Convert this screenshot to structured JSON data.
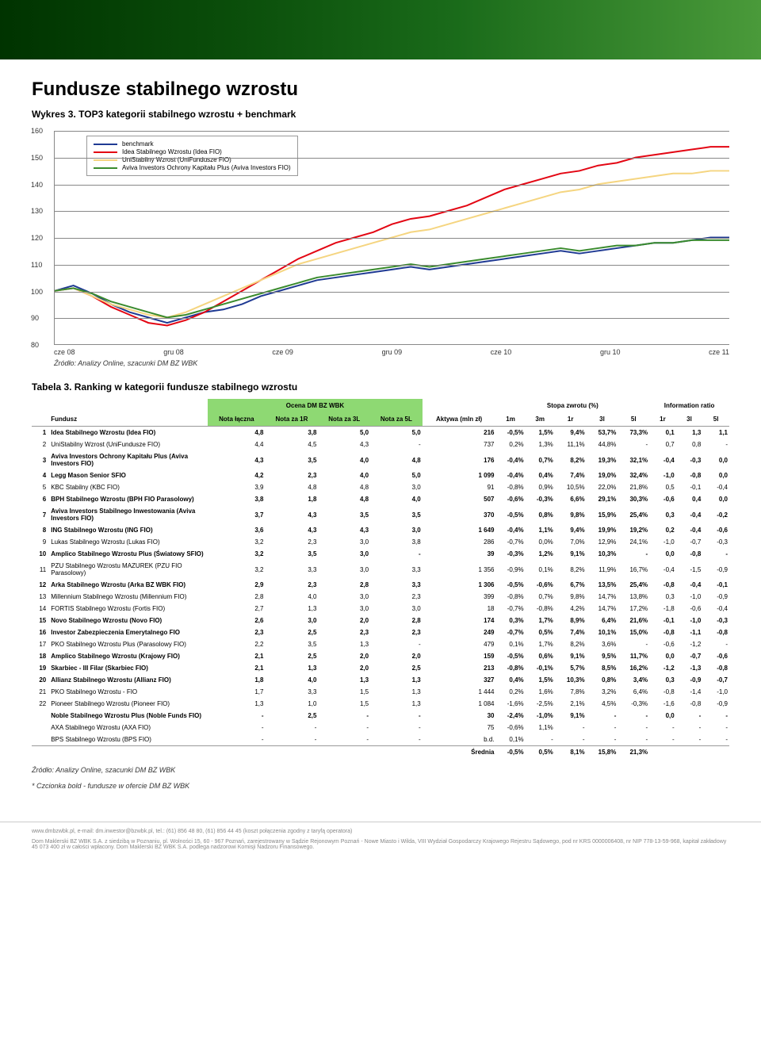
{
  "page": {
    "title": "Fundusze stabilnego wzrostu",
    "chart_caption": "Wykres 3. TOP3 kategorii stabilnego wzrostu + benchmark",
    "chart_source": "Źródło: Analizy Online, szacunki DM BZ WBK",
    "table_caption": "Tabela 3. Ranking w kategorii fundusze stabilnego wzrostu",
    "table_source": "Źródło: Analizy Online, szacunki DM BZ WBK",
    "table_note": "* Czcionka bold - fundusze w ofercie DM BZ WBK"
  },
  "chart": {
    "type": "line",
    "ylim": [
      80,
      160
    ],
    "ytick_step": 10,
    "yticks": [
      80,
      90,
      100,
      110,
      120,
      130,
      140,
      150,
      160
    ],
    "xlabels": [
      "cze 08",
      "gru 08",
      "cze 09",
      "gru 09",
      "cze 10",
      "gru 10",
      "cze 11"
    ],
    "background_color": "#ffffff",
    "grid_color": "#888888",
    "axis_color": "#888888",
    "label_fontsize": 9,
    "line_width": 2,
    "legend_fontsize": 8,
    "legend_border_color": "#999999",
    "series": [
      {
        "name": "benchmark",
        "color": "#1f3a93",
        "x": [
          0,
          1,
          2,
          3,
          4,
          5,
          6,
          7,
          8,
          9,
          10,
          11,
          12,
          13,
          14,
          15,
          16,
          17,
          18,
          19,
          20,
          21,
          22,
          23,
          24,
          25,
          26,
          27,
          28,
          29,
          30,
          31,
          32,
          33,
          34,
          35,
          36
        ],
        "y": [
          100,
          102,
          99,
          95,
          92,
          90,
          88,
          90,
          92,
          93,
          95,
          98,
          100,
          102,
          104,
          105,
          106,
          107,
          108,
          109,
          108,
          109,
          110,
          111,
          112,
          113,
          114,
          115,
          114,
          115,
          116,
          117,
          118,
          118,
          119,
          120,
          120
        ]
      },
      {
        "name": "Idea Stabilnego Wzrostu (Idea FIO)",
        "color": "#e30613",
        "x": [
          0,
          1,
          2,
          3,
          4,
          5,
          6,
          7,
          8,
          9,
          10,
          11,
          12,
          13,
          14,
          15,
          16,
          17,
          18,
          19,
          20,
          21,
          22,
          23,
          24,
          25,
          26,
          27,
          28,
          29,
          30,
          31,
          32,
          33,
          34,
          35,
          36
        ],
        "y": [
          100,
          101,
          98,
          94,
          91,
          88,
          87,
          89,
          92,
          96,
          100,
          104,
          108,
          112,
          115,
          118,
          120,
          122,
          125,
          127,
          128,
          130,
          132,
          135,
          138,
          140,
          142,
          144,
          145,
          147,
          148,
          150,
          151,
          152,
          153,
          154,
          154
        ]
      },
      {
        "name": "UniStabilny Wzrost (UniFundusze FIO)",
        "color": "#f5d580",
        "x": [
          0,
          1,
          2,
          3,
          4,
          5,
          6,
          7,
          8,
          9,
          10,
          11,
          12,
          13,
          14,
          15,
          16,
          17,
          18,
          19,
          20,
          21,
          22,
          23,
          24,
          25,
          26,
          27,
          28,
          29,
          30,
          31,
          32,
          33,
          34,
          35,
          36
        ],
        "y": [
          100,
          101,
          98,
          95,
          93,
          91,
          90,
          92,
          95,
          98,
          101,
          104,
          107,
          110,
          112,
          114,
          116,
          118,
          120,
          122,
          123,
          125,
          127,
          129,
          131,
          133,
          135,
          137,
          138,
          140,
          141,
          142,
          143,
          144,
          144,
          145,
          145
        ]
      },
      {
        "name": "Aviva Investors Ochrony Kapitału Plus (Aviva Investors FIO)",
        "color": "#3a8b2e",
        "x": [
          0,
          1,
          2,
          3,
          4,
          5,
          6,
          7,
          8,
          9,
          10,
          11,
          12,
          13,
          14,
          15,
          16,
          17,
          18,
          19,
          20,
          21,
          22,
          23,
          24,
          25,
          26,
          27,
          28,
          29,
          30,
          31,
          32,
          33,
          34,
          35,
          36
        ],
        "y": [
          100,
          101,
          99,
          96,
          94,
          92,
          90,
          91,
          93,
          95,
          97,
          99,
          101,
          103,
          105,
          106,
          107,
          108,
          109,
          110,
          109,
          110,
          111,
          112,
          113,
          114,
          115,
          116,
          115,
          116,
          117,
          117,
          118,
          118,
          119,
          119,
          119
        ]
      }
    ]
  },
  "table": {
    "group_headers": {
      "ocena": "Ocena DM BZ WBK",
      "stopa": "Stopa zwrotu (%)",
      "info": "Information ratio"
    },
    "col_fundusz": "Fundusz",
    "cols": [
      "Nota łączna",
      "Nota za 1R",
      "Nota za 3L",
      "Nota za 5L",
      "Aktywa (mln zł)",
      "1m",
      "3m",
      "1r",
      "3l",
      "5l",
      "1r",
      "3l",
      "5l"
    ],
    "ocena_bg": "#8ed973",
    "rows": [
      {
        "rank": "1",
        "name": "Idea Stabilnego Wzrostu (Idea FIO)",
        "bold": true,
        "cells": [
          "4,8",
          "3,8",
          "5,0",
          "5,0",
          "216",
          "-0,5%",
          "1,5%",
          "9,4%",
          "53,7%",
          "73,3%",
          "0,1",
          "1,3",
          "1,1"
        ]
      },
      {
        "rank": "2",
        "name": "UniStabilny Wzrost (UniFundusze FIO)",
        "bold": false,
        "cells": [
          "4,4",
          "4,5",
          "4,3",
          "-",
          "737",
          "0,2%",
          "1,3%",
          "11,1%",
          "44,8%",
          "-",
          "0,7",
          "0,8",
          "-"
        ]
      },
      {
        "rank": "3",
        "name": "Aviva Investors Ochrony Kapitału Plus (Aviva Investors FIO)",
        "bold": true,
        "cells": [
          "4,3",
          "3,5",
          "4,0",
          "4,8",
          "176",
          "-0,4%",
          "0,7%",
          "8,2%",
          "19,3%",
          "32,1%",
          "-0,4",
          "-0,3",
          "0,0"
        ]
      },
      {
        "rank": "4",
        "name": "Legg Mason Senior SFIO",
        "bold": true,
        "cells": [
          "4,2",
          "2,3",
          "4,0",
          "5,0",
          "1 099",
          "-0,4%",
          "0,4%",
          "7,4%",
          "19,0%",
          "32,4%",
          "-1,0",
          "-0,8",
          "0,0"
        ]
      },
      {
        "rank": "5",
        "name": "KBC Stabilny (KBC FIO)",
        "bold": false,
        "cells": [
          "3,9",
          "4,8",
          "4,8",
          "3,0",
          "91",
          "-0,8%",
          "0,9%",
          "10,5%",
          "22,0%",
          "21,8%",
          "0,5",
          "-0,1",
          "-0,4"
        ]
      },
      {
        "rank": "6",
        "name": "BPH Stabilnego Wzrostu (BPH FIO Parasolowy)",
        "bold": true,
        "cells": [
          "3,8",
          "1,8",
          "4,8",
          "4,0",
          "507",
          "-0,6%",
          "-0,3%",
          "6,6%",
          "29,1%",
          "30,3%",
          "-0,6",
          "0,4",
          "0,0"
        ]
      },
      {
        "rank": "7",
        "name": "Aviva Investors Stabilnego Inwestowania (Aviva Investors FIO)",
        "bold": true,
        "cells": [
          "3,7",
          "4,3",
          "3,5",
          "3,5",
          "370",
          "-0,5%",
          "0,8%",
          "9,8%",
          "15,9%",
          "25,4%",
          "0,3",
          "-0,4",
          "-0,2"
        ]
      },
      {
        "rank": "8",
        "name": "ING Stabilnego Wzrostu (ING FIO)",
        "bold": true,
        "cells": [
          "3,6",
          "4,3",
          "4,3",
          "3,0",
          "1 649",
          "-0,4%",
          "1,1%",
          "9,4%",
          "19,9%",
          "19,2%",
          "0,2",
          "-0,4",
          "-0,6"
        ]
      },
      {
        "rank": "9",
        "name": "Lukas Stabilnego Wzrostu (Lukas FIO)",
        "bold": false,
        "cells": [
          "3,2",
          "2,3",
          "3,0",
          "3,8",
          "286",
          "-0,7%",
          "0,0%",
          "7,0%",
          "12,9%",
          "24,1%",
          "-1,0",
          "-0,7",
          "-0,3"
        ]
      },
      {
        "rank": "10",
        "name": "Amplico Stabilnego Wzrostu Plus (Światowy SFIO)",
        "bold": true,
        "cells": [
          "3,2",
          "3,5",
          "3,0",
          "-",
          "39",
          "-0,3%",
          "1,2%",
          "9,1%",
          "10,3%",
          "-",
          "0,0",
          "-0,8",
          "-"
        ]
      },
      {
        "rank": "11",
        "name": "PZU Stabilnego Wzrostu MAZUREK (PZU FIO Parasolowy)",
        "bold": false,
        "cells": [
          "3,2",
          "3,3",
          "3,0",
          "3,3",
          "1 356",
          "-0,9%",
          "0,1%",
          "8,2%",
          "11,9%",
          "16,7%",
          "-0,4",
          "-1,5",
          "-0,9"
        ]
      },
      {
        "rank": "12",
        "name": "Arka Stabilnego Wzrostu (Arka BZ WBK FIO)",
        "bold": true,
        "cells": [
          "2,9",
          "2,3",
          "2,8",
          "3,3",
          "1 306",
          "-0,5%",
          "-0,6%",
          "6,7%",
          "13,5%",
          "25,4%",
          "-0,8",
          "-0,4",
          "-0,1"
        ]
      },
      {
        "rank": "13",
        "name": "Millennium Stabilnego Wzrostu (Millennium FIO)",
        "bold": false,
        "cells": [
          "2,8",
          "4,0",
          "3,0",
          "2,3",
          "399",
          "-0,8%",
          "0,7%",
          "9,8%",
          "14,7%",
          "13,8%",
          "0,3",
          "-1,0",
          "-0,9"
        ]
      },
      {
        "rank": "14",
        "name": "FORTIS Stabilnego Wzrostu (Fortis FIO)",
        "bold": false,
        "cells": [
          "2,7",
          "1,3",
          "3,0",
          "3,0",
          "18",
          "-0,7%",
          "-0,8%",
          "4,2%",
          "14,7%",
          "17,2%",
          "-1,8",
          "-0,6",
          "-0,4"
        ]
      },
      {
        "rank": "15",
        "name": "Novo Stabilnego Wzrostu (Novo FIO)",
        "bold": true,
        "cells": [
          "2,6",
          "3,0",
          "2,0",
          "2,8",
          "174",
          "0,3%",
          "1,7%",
          "8,9%",
          "6,4%",
          "21,6%",
          "-0,1",
          "-1,0",
          "-0,3"
        ]
      },
      {
        "rank": "16",
        "name": "Investor Zabezpieczenia Emerytalnego FIO",
        "bold": true,
        "cells": [
          "2,3",
          "2,5",
          "2,3",
          "2,3",
          "249",
          "-0,7%",
          "0,5%",
          "7,4%",
          "10,1%",
          "15,0%",
          "-0,8",
          "-1,1",
          "-0,8"
        ]
      },
      {
        "rank": "17",
        "name": "PKO Stabilnego Wzrostu Plus (Parasolowy FIO)",
        "bold": false,
        "cells": [
          "2,2",
          "3,5",
          "1,3",
          "-",
          "479",
          "0,1%",
          "1,7%",
          "8,2%",
          "3,6%",
          "-",
          "-0,6",
          "-1,2",
          "-"
        ]
      },
      {
        "rank": "18",
        "name": "Amplico Stabilnego Wzrostu (Krajowy FIO)",
        "bold": true,
        "cells": [
          "2,1",
          "2,5",
          "2,0",
          "2,0",
          "159",
          "-0,5%",
          "0,6%",
          "9,1%",
          "9,5%",
          "11,7%",
          "0,0",
          "-0,7",
          "-0,6"
        ]
      },
      {
        "rank": "19",
        "name": "Skarbiec - III Filar (Skarbiec FIO)",
        "bold": true,
        "cells": [
          "2,1",
          "1,3",
          "2,0",
          "2,5",
          "213",
          "-0,8%",
          "-0,1%",
          "5,7%",
          "8,5%",
          "16,2%",
          "-1,2",
          "-1,3",
          "-0,8"
        ]
      },
      {
        "rank": "20",
        "name": "Allianz Stabilnego Wzrostu (Allianz FIO)",
        "bold": true,
        "cells": [
          "1,8",
          "4,0",
          "1,3",
          "1,3",
          "327",
          "0,4%",
          "1,5%",
          "10,3%",
          "0,8%",
          "3,4%",
          "0,3",
          "-0,9",
          "-0,7"
        ]
      },
      {
        "rank": "21",
        "name": "PKO Stabilnego Wzrostu - FIO",
        "bold": false,
        "cells": [
          "1,7",
          "3,3",
          "1,5",
          "1,3",
          "1 444",
          "0,2%",
          "1,6%",
          "7,8%",
          "3,2%",
          "6,4%",
          "-0,8",
          "-1,4",
          "-1,0"
        ]
      },
      {
        "rank": "22",
        "name": "Pioneer Stabilnego Wzrostu (Pioneer FIO)",
        "bold": false,
        "cells": [
          "1,3",
          "1,0",
          "1,5",
          "1,3",
          "1 084",
          "-1,6%",
          "-2,5%",
          "2,1%",
          "4,5%",
          "-0,3%",
          "-1,6",
          "-0,8",
          "-0,9"
        ]
      },
      {
        "rank": "",
        "name": "Noble Stabilnego Wzrostu Plus (Noble Funds FIO)",
        "bold": true,
        "cells": [
          "-",
          "2,5",
          "-",
          "-",
          "30",
          "-2,4%",
          "-1,0%",
          "9,1%",
          "-",
          "-",
          "0,0",
          "-",
          "-"
        ]
      },
      {
        "rank": "",
        "name": "AXA Stabilnego Wzrostu (AXA FIO)",
        "bold": false,
        "cells": [
          "-",
          "-",
          "-",
          "-",
          "75",
          "-0,6%",
          "1,1%",
          "-",
          "-",
          "-",
          "-",
          "-",
          "-"
        ]
      },
      {
        "rank": "",
        "name": "BPS Stabilnego Wzrostu (BPS FIO)",
        "bold": false,
        "cells": [
          "-",
          "-",
          "-",
          "-",
          "b.d.",
          "0,1%",
          "-",
          "-",
          "-",
          "-",
          "-",
          "-",
          "-"
        ]
      }
    ],
    "average": {
      "label": "Średnia",
      "cells": [
        "-0,5%",
        "0,5%",
        "8,1%",
        "15,8%",
        "21,3%"
      ]
    }
  },
  "footer": {
    "line1": "www.dmbzwbk.pl, e-mail: dm.inwestor@bzwbk.pl, tel.: (61) 856 48 80, (61) 856 44 45 (koszt połączenia zgodny z taryfą operatora)",
    "line2": "Dom Maklerski BZ WBK S.A. z siedzibą w Poznaniu, pl. Wolności 15, 60 - 967 Poznań, zarejestrowany w Sądzie Rejonowym Poznań - Nowe Miasto i Wilda, VIII Wydział Gospodarczy Krajowego Rejestru Sądowego, pod nr KRS 0000006408, nr NIP 778-13-59-968, kapitał zakładowy 45 073 400 zł w całości wpłacony. Dom Maklerski BZ WBK S.A. podlega nadzorowi Komisji Nadzoru Finansowego."
  }
}
